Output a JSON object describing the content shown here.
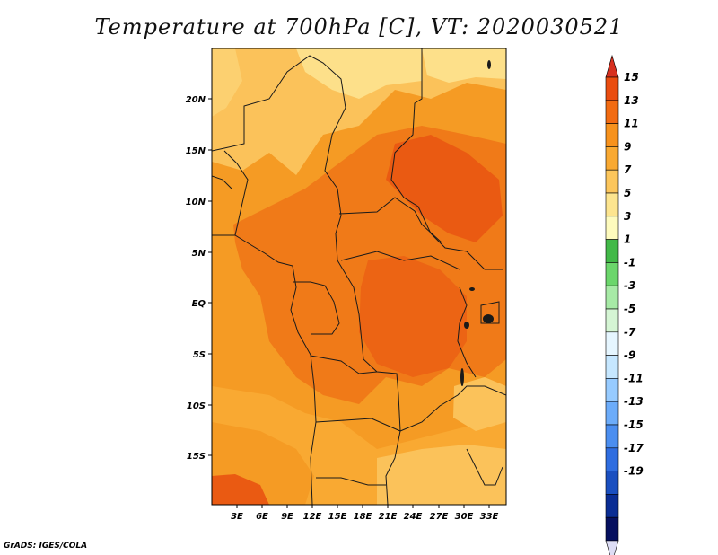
{
  "title": "Temperature at 700hPa [C], VT: 2020030521",
  "footer": "GrADS: IGES/COLA",
  "map": {
    "lat_labels": [
      "20N",
      "15N",
      "10N",
      "5N",
      "EQ",
      "5S",
      "10S",
      "15S"
    ],
    "lon_labels": [
      "3E",
      "6E",
      "9E",
      "12E",
      "15E",
      "18E",
      "21E",
      "24E",
      "27E",
      "30E",
      "33E"
    ]
  },
  "colorbar": {
    "labels": [
      "15",
      "13",
      "11",
      "9",
      "7",
      "5",
      "3",
      "1",
      "-1",
      "-3",
      "-5",
      "-7",
      "-9",
      "-11",
      "-13",
      "-15",
      "-17",
      "-19"
    ],
    "colors": [
      "#d7301f",
      "#ea4d10",
      "#f26b12",
      "#f7921d",
      "#f9a932",
      "#fcc65c",
      "#fde58f",
      "#fefbbd",
      "#42b948",
      "#6bd66b",
      "#a7eaa6",
      "#d5f5d4",
      "#e6f6ff",
      "#c6e7ff",
      "#97cbff",
      "#6cacfa",
      "#4b8ef0",
      "#2f6de0",
      "#1a4fc0",
      "#0a2d94",
      "#06105f",
      "#ddddf5"
    ]
  }
}
